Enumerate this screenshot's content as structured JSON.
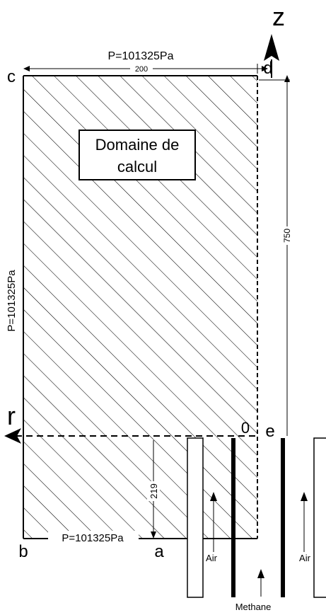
{
  "axes": {
    "z_label": "z",
    "r_label": "r",
    "origin_label": "0"
  },
  "points": {
    "a": "a",
    "b": "b",
    "c": "c",
    "d": "d",
    "e": "e"
  },
  "domain_box": {
    "line1": "Domaine de",
    "line2": "calcul"
  },
  "boundary_pressures": {
    "top": "P=101325Pa",
    "left": "P=101325Pa",
    "bottom": "P=101325Pa"
  },
  "dimensions": {
    "width": "200",
    "height": "750",
    "lower_height": "219"
  },
  "inlets": {
    "air_left": "Air",
    "air_right": "Air",
    "methane": "Methane"
  }
}
